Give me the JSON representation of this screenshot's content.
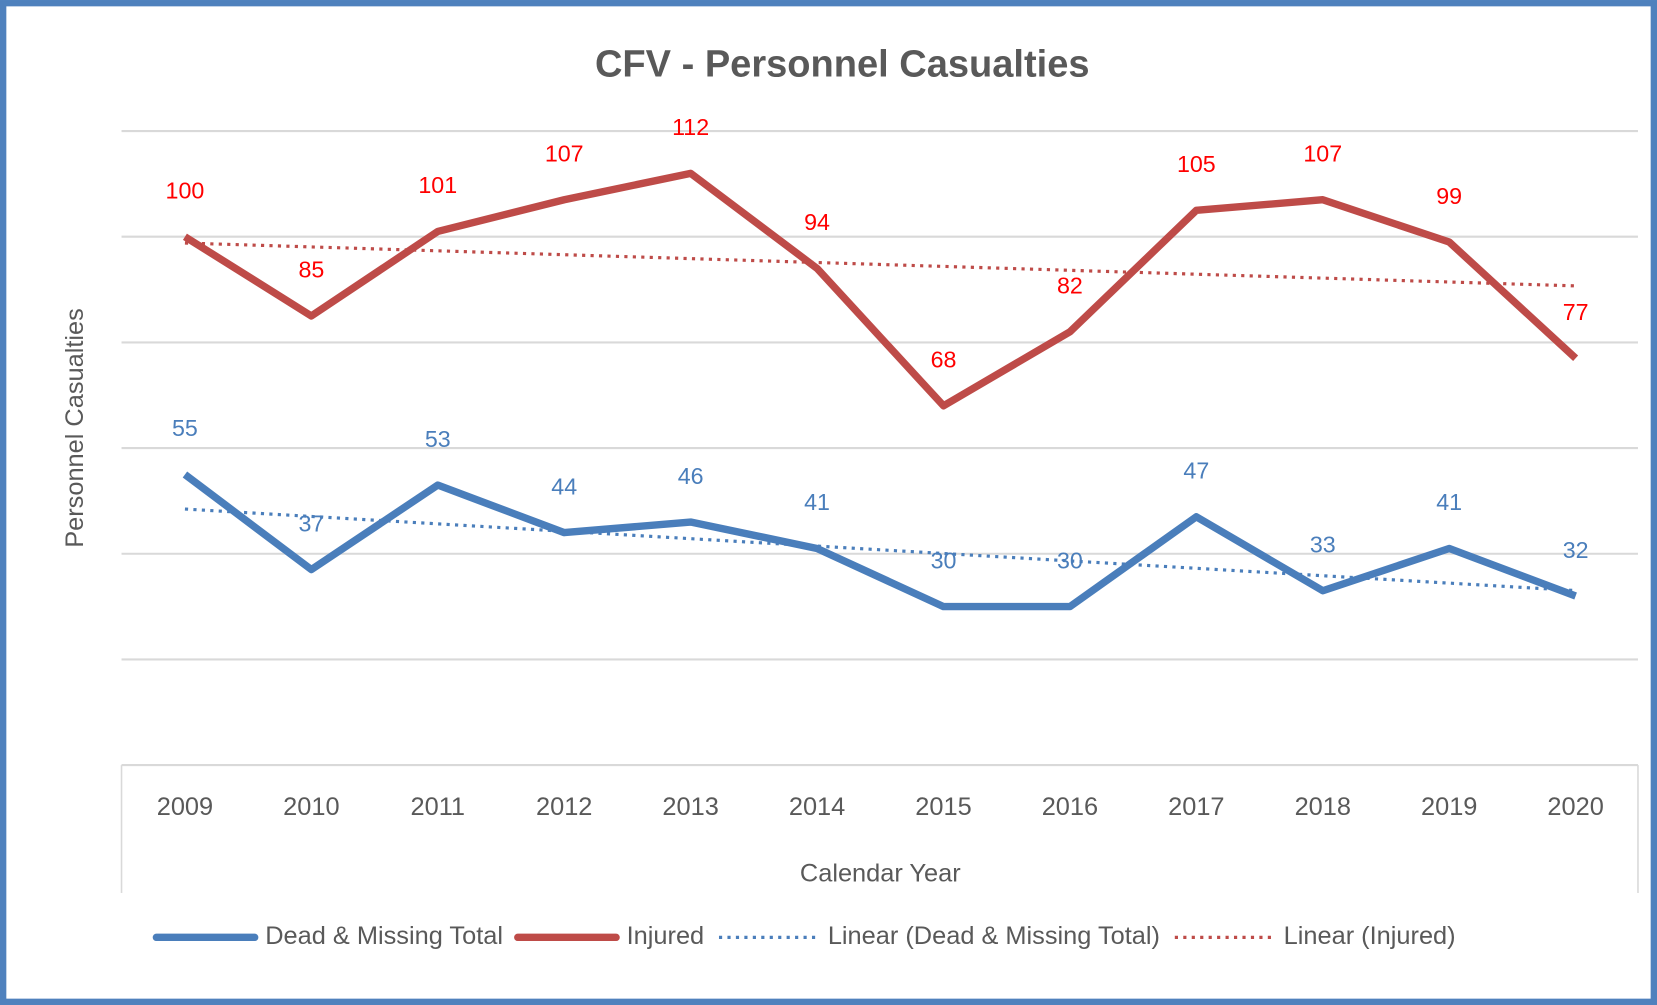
{
  "chart_data": {
    "type": "line",
    "title": "CFV - Personnel Casualties",
    "x_label": "Calendar Year",
    "y_label": "Personnel Casualties",
    "categories": [
      "2009",
      "2010",
      "2011",
      "2012",
      "2013",
      "2014",
      "2015",
      "2016",
      "2017",
      "2018",
      "2019",
      "2020"
    ],
    "series": [
      {
        "name": "Dead & Missing Total",
        "color": "#4a7ebb",
        "label_color": "#4a7ebb",
        "trendline": "Linear (Dead & Missing Total)",
        "values": [
          55,
          37,
          53,
          44,
          46,
          41,
          30,
          30,
          47,
          33,
          41,
          32
        ]
      },
      {
        "name": "Injured",
        "color": "#be4b48",
        "label_color": "#ff0000",
        "trendline": "Linear (Injured)",
        "values": [
          100,
          85,
          101,
          107,
          112,
          94,
          68,
          82,
          105,
          107,
          99,
          77
        ]
      }
    ],
    "ylim": [
      0,
      120
    ],
    "yticks": [
      0,
      20,
      40,
      60,
      80,
      100,
      120
    ],
    "grid": true,
    "legend": "bottom"
  }
}
